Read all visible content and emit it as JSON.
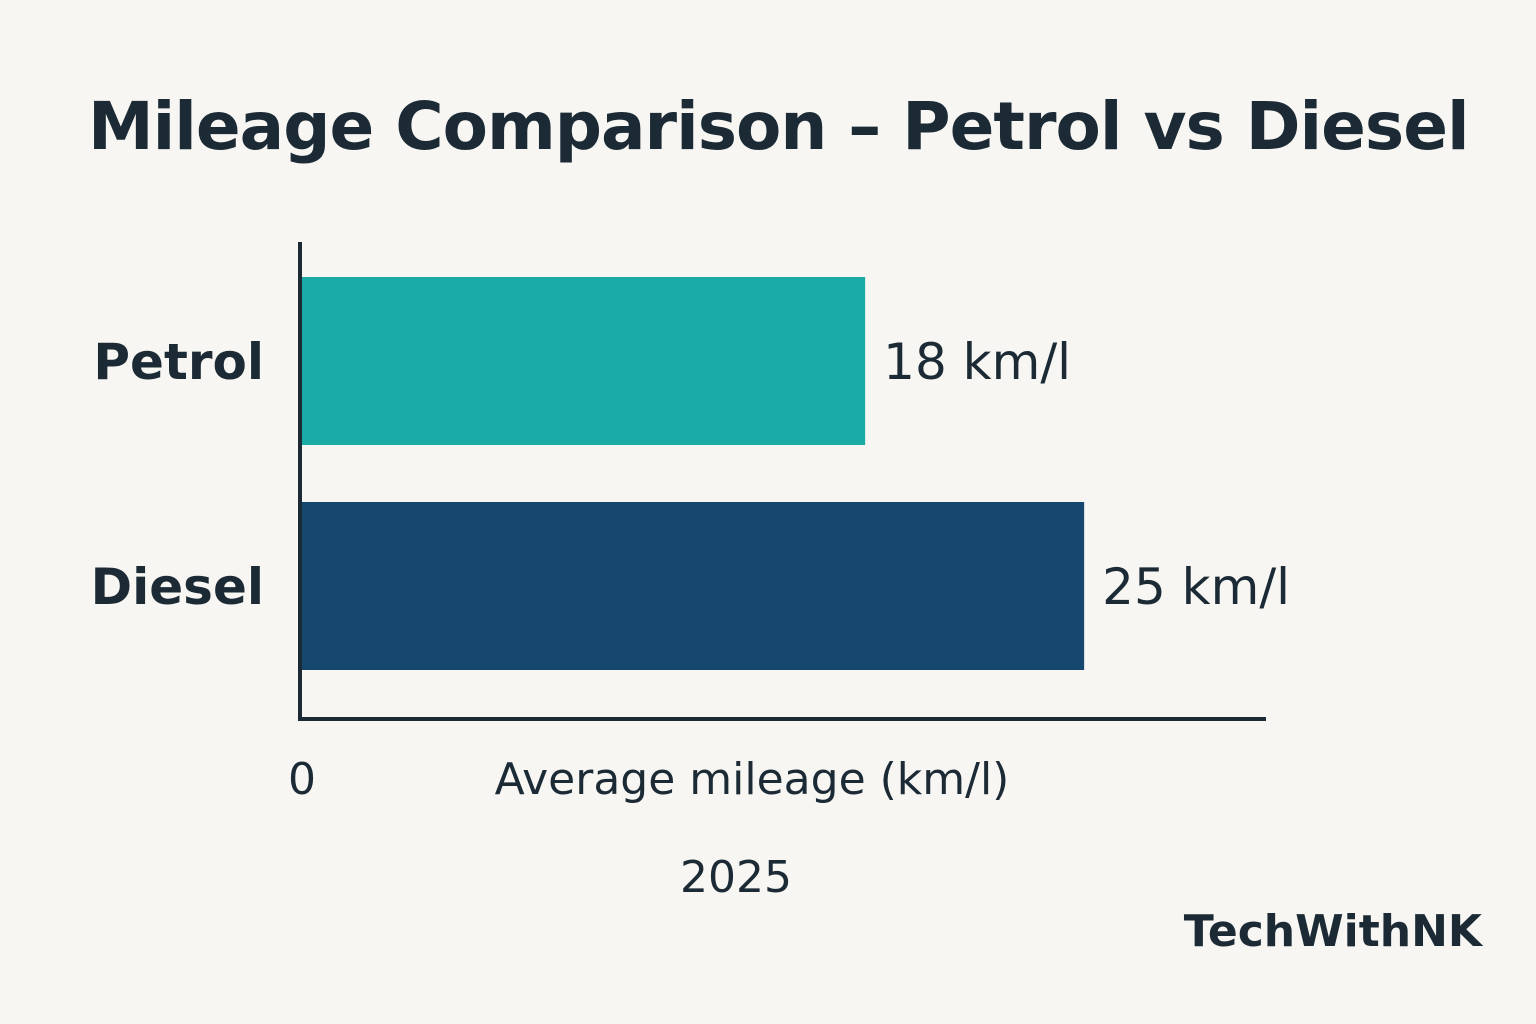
{
  "chart_data": {
    "type": "bar",
    "orientation": "horizontal",
    "title": "Mileage Comparison – Petrol vs Diesel",
    "categories": [
      "Petrol",
      "Diesel"
    ],
    "values": [
      18,
      25
    ],
    "value_labels": [
      "18 km/l",
      "25 km/l"
    ],
    "colors": [
      "#1aaba7",
      "#15476f"
    ],
    "xlabel": "Average mileage (km/l)",
    "x_tick_labels": [
      "0"
    ],
    "xlim": [
      0,
      28
    ],
    "subtitle_below_axis": "2025",
    "grid": false,
    "legend": "none"
  },
  "brand": "TechWithNK"
}
